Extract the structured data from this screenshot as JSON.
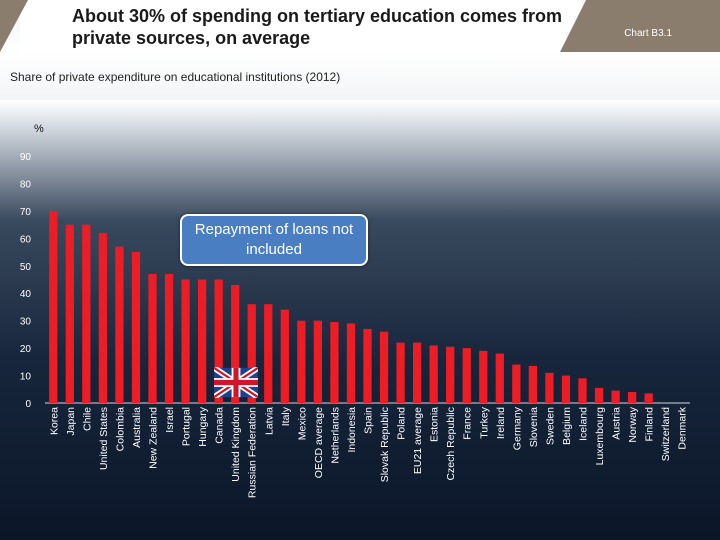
{
  "header": {
    "title": "About 30% of spending on tertiary education comes from private sources, on average",
    "chart_ref": "Chart B3.1"
  },
  "subtitle": "Share of private expenditure on educational institutions (2012)",
  "y_unit": "%",
  "callout": {
    "text": "Repayment of loans not included"
  },
  "flag": {
    "name": "uk-flag",
    "highlight_category": "United Kingdom"
  },
  "colors": {
    "bar": "#ee1c24",
    "axis_text": "#ffffff",
    "unit_text": "#111111"
  },
  "chart_data": {
    "type": "bar",
    "title": "Share of private expenditure on educational institutions (2012)",
    "xlabel": "",
    "ylabel": "%",
    "ylim": [
      0,
      90
    ],
    "yticks": [
      0,
      10,
      20,
      30,
      40,
      50,
      60,
      70,
      80,
      90
    ],
    "grid": false,
    "categories": [
      "Korea",
      "Japan",
      "Chile",
      "United States",
      "Colombia",
      "Australia",
      "New Zealand",
      "Israel",
      "Portugal",
      "Hungary",
      "Canada",
      "United Kingdom",
      "Russian Federation",
      "Latvia",
      "Italy",
      "Mexico",
      "OECD average",
      "Netherlands",
      "Indonesia",
      "Spain",
      "Slovak Republic",
      "Poland",
      "EU21 average",
      "Estonia",
      "Czech Republic",
      "France",
      "Turkey",
      "Ireland",
      "Germany",
      "Slovenia",
      "Sweden",
      "Belgium",
      "Iceland",
      "Luxembourg",
      "Austria",
      "Norway",
      "Finland",
      "Switzerland",
      "Denmark"
    ],
    "values": [
      70,
      65,
      65,
      62,
      57,
      55,
      47,
      47,
      45,
      45,
      45,
      43,
      36,
      36,
      34,
      30,
      30,
      29.5,
      29,
      27,
      26,
      22,
      22,
      21,
      20.5,
      20,
      19,
      18,
      14,
      13.5,
      11,
      10,
      9,
      5.5,
      4.5,
      4,
      3.5,
      0,
      0
    ]
  }
}
